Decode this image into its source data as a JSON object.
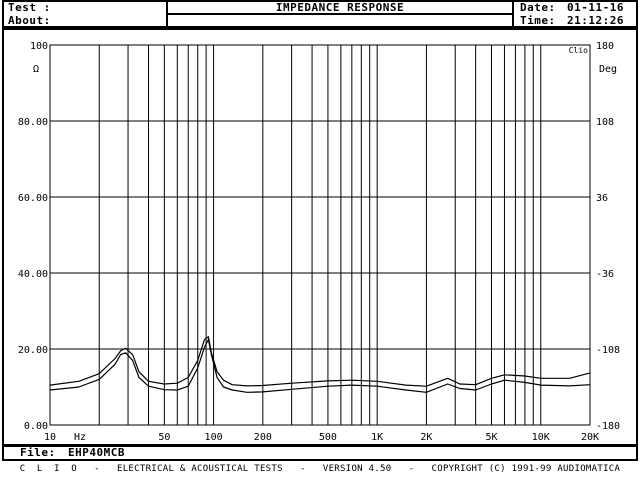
{
  "header": {
    "test_label": "Test :",
    "about_label": "About:",
    "title": "IMPEDANCE RESPONSE",
    "date_label": "Date:",
    "date_value": "01-11-16",
    "time_label": "Time:",
    "time_value": "21:12:26"
  },
  "file_bar": {
    "label": "File:",
    "value": "EHP40MCB"
  },
  "footer": {
    "text": "C  L  I  O   -   ELECTRICAL & ACOUSTICAL TESTS   -   VERSION 4.50   -   COPYRIGHT (C) 1991-99 AUDIOMATICA"
  },
  "chart_data": {
    "type": "line",
    "corner_label": "Clio",
    "left_unit": "Ω",
    "right_unit": "Deg",
    "x_unit": "Hz",
    "x_scale": "log",
    "xlim": [
      10,
      20000
    ],
    "ylim": [
      0,
      100
    ],
    "ylim_right": [
      -180,
      180
    ],
    "grid": true,
    "y_ticks": [
      "0.00",
      "20.00",
      "40.00",
      "60.00",
      "80.00",
      "100"
    ],
    "y_ticks_right": [
      "-180",
      "-108",
      "-36",
      "36",
      "108",
      "180"
    ],
    "x_ticks": [
      {
        "v": 10,
        "label": "10"
      },
      {
        "v": 50,
        "label": "50"
      },
      {
        "v": 100,
        "label": "100"
      },
      {
        "v": 200,
        "label": "200"
      },
      {
        "v": 500,
        "label": "500"
      },
      {
        "v": 1000,
        "label": "1K"
      },
      {
        "v": 2000,
        "label": "2K"
      },
      {
        "v": 5000,
        "label": "5K"
      },
      {
        "v": 10000,
        "label": "10K"
      },
      {
        "v": 20000,
        "label": "20K"
      }
    ],
    "series": [
      {
        "color": "#000000",
        "x": [
          10,
          15,
          20,
          25,
          27,
          29,
          32,
          35,
          40,
          50,
          60,
          70,
          80,
          88,
          93,
          97,
          105,
          115,
          130,
          160,
          200,
          300,
          500,
          700,
          1000,
          1500,
          2000,
          2700,
          3200,
          4000,
          5000,
          6000,
          8000,
          10000,
          15000,
          20000
        ],
        "y": [
          10.5,
          11.5,
          13.5,
          17.5,
          19.5,
          20.2,
          18.5,
          14.0,
          11.5,
          10.8,
          11.0,
          12.5,
          17.0,
          22.5,
          23.2,
          19.0,
          14.0,
          11.8,
          10.6,
          10.3,
          10.4,
          11.0,
          11.6,
          11.8,
          11.5,
          10.5,
          10.2,
          12.3,
          10.8,
          10.6,
          12.3,
          13.2,
          12.9,
          12.3,
          12.3,
          13.7
        ]
      },
      {
        "color": "#000000",
        "x": [
          10,
          15,
          20,
          25,
          27,
          29,
          32,
          35,
          40,
          50,
          60,
          70,
          80,
          88,
          93,
          97,
          105,
          115,
          130,
          160,
          200,
          300,
          500,
          700,
          1000,
          1500,
          2000,
          2700,
          3200,
          4000,
          5000,
          6000,
          8000,
          10000,
          15000,
          20000
        ],
        "y": [
          9.2,
          10.0,
          12.0,
          16.0,
          18.5,
          19.0,
          17.0,
          12.5,
          10.2,
          9.3,
          9.2,
          10.2,
          15.0,
          20.5,
          22.5,
          18.5,
          12.5,
          10.0,
          9.2,
          8.6,
          8.7,
          9.4,
          10.2,
          10.5,
          10.2,
          9.2,
          8.6,
          10.8,
          9.6,
          9.2,
          10.8,
          11.8,
          11.2,
          10.5,
          10.3,
          10.6
        ]
      }
    ]
  }
}
